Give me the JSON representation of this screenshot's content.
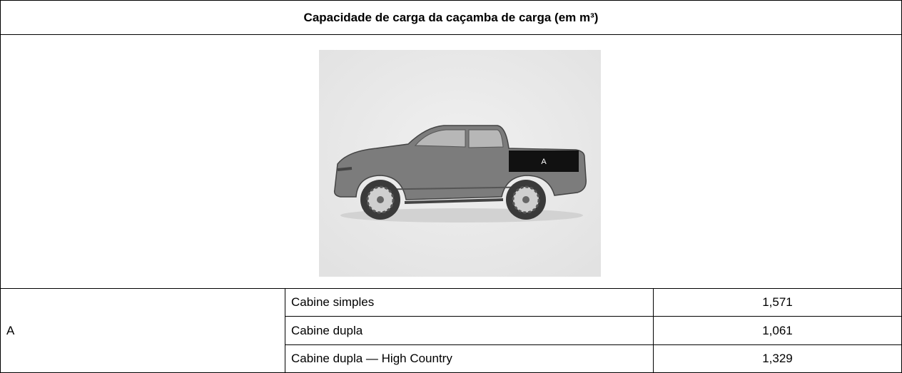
{
  "header": {
    "title": "Capacidade de carga da caçamba de carga (em m³)"
  },
  "figure": {
    "label": "A"
  },
  "table": {
    "group_label": "A",
    "rows": [
      [
        "Cabine simples",
        "1,571"
      ],
      [
        "Cabine dupla",
        "1,061"
      ],
      [
        "Cabine dupla — High Country",
        "1,329"
      ]
    ]
  }
}
